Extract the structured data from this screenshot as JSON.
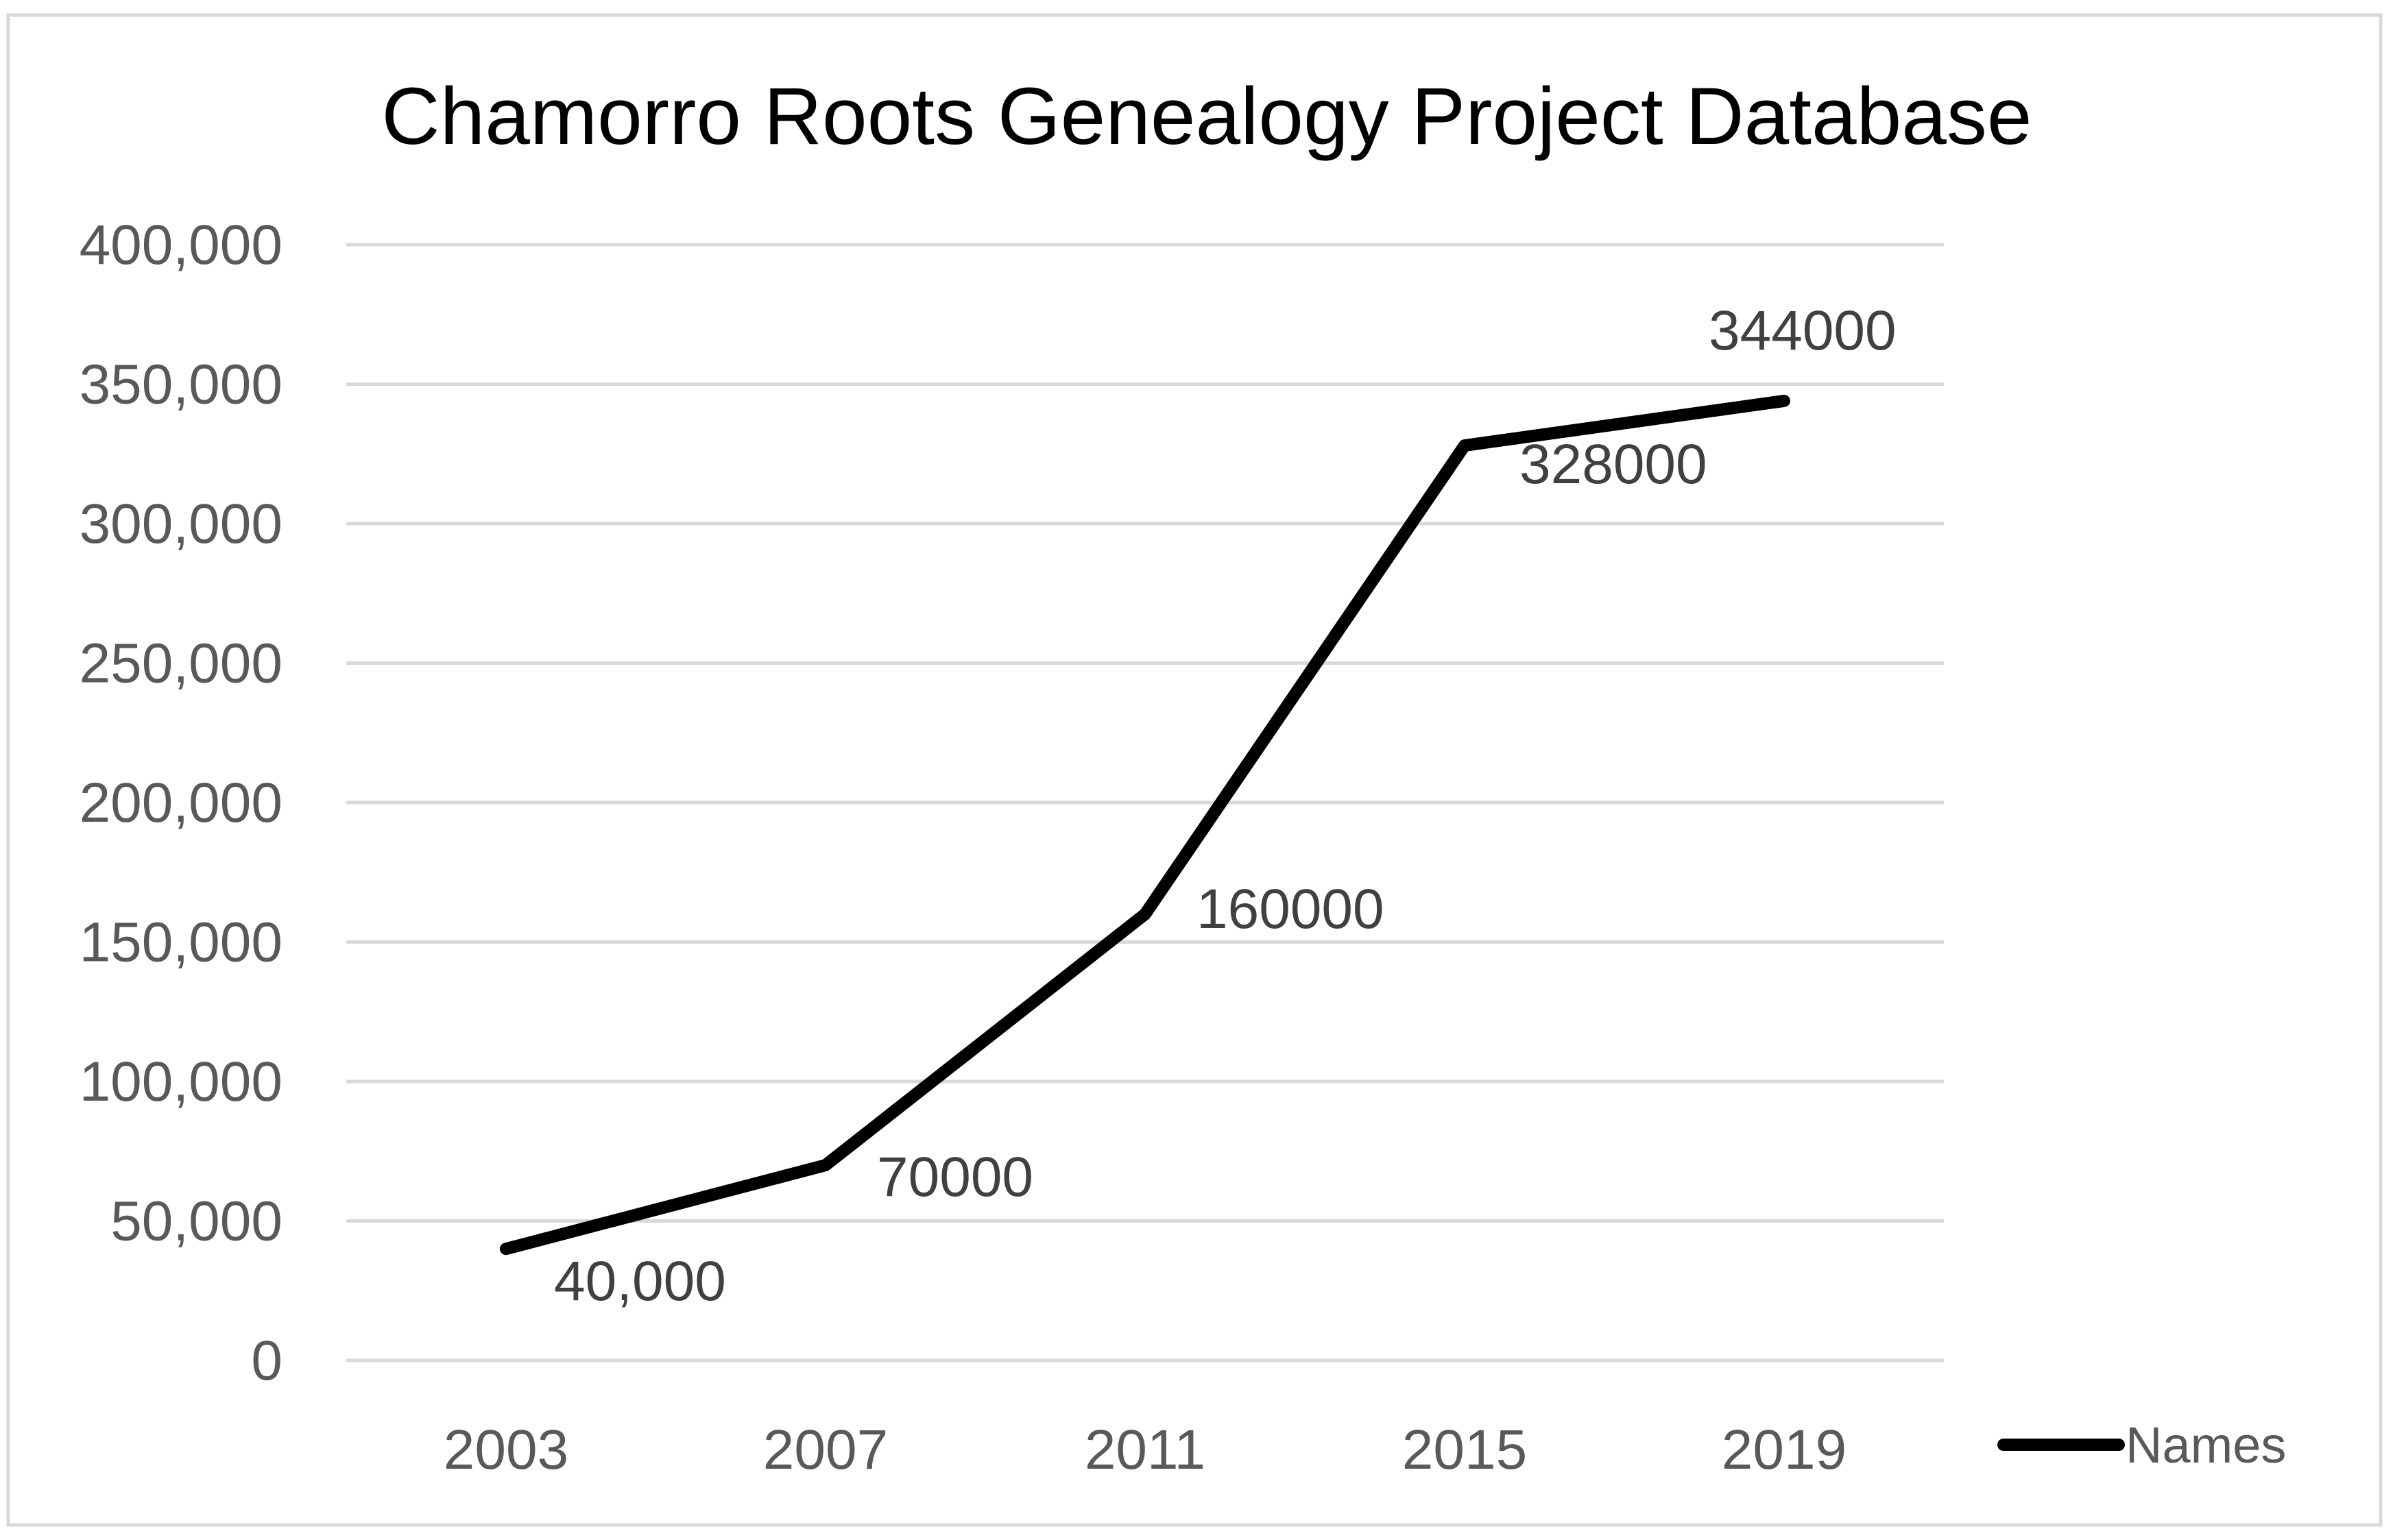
{
  "chart_data": {
    "type": "line",
    "title": "Chamorro Roots Genealogy Project Database",
    "categories": [
      "2003",
      "2007",
      "2011",
      "2015",
      "2019"
    ],
    "series": [
      {
        "name": "Names",
        "values": [
          40000,
          70000,
          160000,
          328000,
          344000
        ],
        "data_labels": [
          "40,000",
          "70000",
          "160000",
          "328000",
          "344000"
        ],
        "color": "#000000"
      }
    ],
    "y_ticks": [
      "0",
      "50,000",
      "100,000",
      "150,000",
      "200,000",
      "250,000",
      "300,000",
      "350,000",
      "400,000"
    ],
    "ylim": [
      0,
      400000
    ],
    "grid": true,
    "legend_position": "right"
  }
}
